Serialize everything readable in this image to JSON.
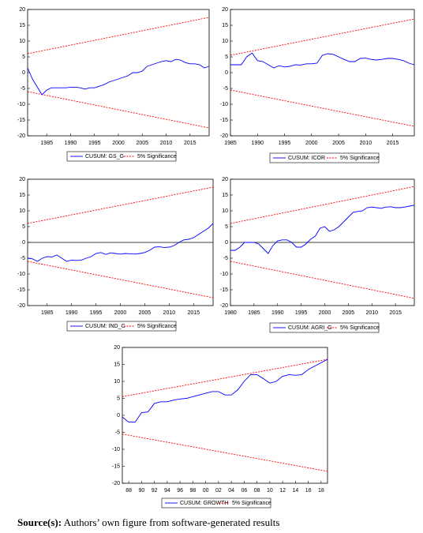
{
  "chart_data": [
    {
      "type": "line",
      "xlim": [
        1981,
        2019
      ],
      "xticks": [
        1985,
        1990,
        1995,
        2000,
        2005,
        2010,
        2015
      ],
      "ylim": [
        -20,
        20
      ],
      "yticks": [
        20,
        15,
        10,
        5,
        0,
        -5,
        -10,
        -15,
        -20
      ],
      "zero_line": false,
      "x": [
        1981,
        1982,
        1983,
        1984,
        1985,
        1986,
        1987,
        1988,
        1989,
        1990,
        1991,
        1992,
        1993,
        1994,
        1995,
        1996,
        1997,
        1998,
        1999,
        2000,
        2001,
        2002,
        2003,
        2004,
        2005,
        2006,
        2007,
        2008,
        2009,
        2010,
        2011,
        2012,
        2013,
        2014,
        2015,
        2016,
        2017,
        2018,
        2019
      ],
      "series": [
        {
          "name": "CUSUM: GS_G",
          "color": "#0000ff",
          "values": [
            1.5,
            -2,
            -4.5,
            -7,
            -5.5,
            -4.8,
            -4.8,
            -4.8,
            -4.8,
            -4.6,
            -4.6,
            -4.8,
            -5.2,
            -4.8,
            -4.8,
            -4.3,
            -3.8,
            -3,
            -2.5,
            -2,
            -1.5,
            -1,
            0,
            0,
            0.5,
            2,
            2.5,
            3,
            3.5,
            3.8,
            3.5,
            4.2,
            4,
            3.2,
            2.8,
            2.8,
            2.5,
            1.5,
            2
          ]
        }
      ],
      "bands": {
        "name": "5% Significance",
        "color": "#ff0000",
        "x": [
          1981,
          2019
        ],
        "upper": [
          6,
          17.5
        ],
        "lower": [
          -6,
          -17.5
        ]
      }
    },
    {
      "type": "line",
      "xlim": [
        1985,
        2019
      ],
      "xticks": [
        1985,
        1990,
        1995,
        2000,
        2005,
        2010,
        2015
      ],
      "ylim": [
        -20,
        20
      ],
      "yticks": [
        20,
        15,
        10,
        5,
        0,
        -5,
        -10,
        -15,
        -20
      ],
      "zero_line": false,
      "x": [
        1985,
        1986,
        1987,
        1988,
        1989,
        1990,
        1991,
        1992,
        1993,
        1994,
        1995,
        1996,
        1997,
        1998,
        1999,
        2000,
        2001,
        2002,
        2003,
        2004,
        2005,
        2006,
        2007,
        2008,
        2009,
        2010,
        2011,
        2012,
        2013,
        2014,
        2015,
        2016,
        2017,
        2018,
        2019
      ],
      "series": [
        {
          "name": "CUSUM: ICOR",
          "color": "#0000ff",
          "values": [
            2.5,
            2.5,
            2.5,
            5,
            6.2,
            3.8,
            3.5,
            2.5,
            1.5,
            2.2,
            1.8,
            2,
            2.5,
            2.4,
            2.8,
            2.8,
            3,
            5.5,
            6,
            5.8,
            5,
            4.2,
            3.5,
            3.5,
            4.5,
            4.6,
            4.2,
            4,
            4.2,
            4.5,
            4.5,
            4.2,
            3.8,
            3,
            2.5
          ]
        }
      ],
      "bands": {
        "name": "5% Significance",
        "color": "#ff0000",
        "x": [
          1985,
          2019
        ],
        "upper": [
          5.5,
          17
        ],
        "lower": [
          -5.5,
          -17
        ]
      }
    },
    {
      "type": "line",
      "xlim": [
        1981,
        2019
      ],
      "xticks": [
        1985,
        1990,
        1995,
        2000,
        2005,
        2010,
        2015
      ],
      "ylim": [
        -20,
        20
      ],
      "yticks": [
        20,
        15,
        10,
        5,
        0,
        -5,
        -10,
        -15,
        -20
      ],
      "zero_line": true,
      "x": [
        1981,
        1982,
        1983,
        1984,
        1985,
        1986,
        1987,
        1988,
        1989,
        1990,
        1991,
        1992,
        1993,
        1994,
        1995,
        1996,
        1997,
        1998,
        1999,
        2000,
        2001,
        2002,
        2003,
        2004,
        2005,
        2006,
        2007,
        2008,
        2009,
        2010,
        2011,
        2012,
        2013,
        2014,
        2015,
        2016,
        2017,
        2018,
        2019
      ],
      "series": [
        {
          "name": "CUSUM: IND_G",
          "color": "#0000ff",
          "values": [
            -5,
            -5.2,
            -6,
            -5,
            -4.5,
            -4.6,
            -4,
            -5,
            -6,
            -5.6,
            -5.7,
            -5.6,
            -5,
            -4.5,
            -3.5,
            -3.2,
            -3.8,
            -3.3,
            -3.5,
            -3.7,
            -3.5,
            -3.6,
            -3.7,
            -3.5,
            -3.2,
            -2.5,
            -1.5,
            -1.4,
            -1.6,
            -1.5,
            -1,
            0,
            0.8,
            1,
            1.5,
            2.5,
            3.5,
            4.5,
            6
          ]
        }
      ],
      "bands": {
        "name": "5% Significance",
        "color": "#ff0000",
        "x": [
          1981,
          2019
        ],
        "upper": [
          6,
          17.5
        ],
        "lower": [
          -6,
          -17.5
        ]
      }
    },
    {
      "type": "line",
      "xlim": [
        1980,
        2019
      ],
      "xticks": [
        1980,
        1985,
        1990,
        1995,
        2000,
        2005,
        2010,
        2015
      ],
      "ylim": [
        -20,
        20
      ],
      "yticks": [
        20,
        15,
        10,
        5,
        0,
        -5,
        -10,
        -15,
        -20
      ],
      "zero_line": true,
      "x": [
        1980,
        1981,
        1982,
        1983,
        1984,
        1985,
        1986,
        1987,
        1988,
        1989,
        1990,
        1991,
        1992,
        1993,
        1994,
        1995,
        1996,
        1997,
        1998,
        1999,
        2000,
        2001,
        2002,
        2003,
        2004,
        2005,
        2006,
        2007,
        2008,
        2009,
        2010,
        2011,
        2012,
        2013,
        2014,
        2015,
        2016,
        2017,
        2018,
        2019
      ],
      "series": [
        {
          "name": "CUSUM: AGRI_G",
          "color": "#0000ff",
          "values": [
            -2.5,
            -2.5,
            -1.5,
            0,
            0,
            0,
            -0.5,
            -2,
            -3.5,
            -1,
            0.5,
            0.8,
            0.8,
            0,
            -1.5,
            -1.5,
            -0.5,
            1,
            2,
            4.5,
            5,
            3.5,
            4,
            5,
            6.5,
            8,
            9.5,
            9.8,
            10,
            11,
            11.2,
            11,
            10.8,
            11.2,
            11.3,
            11,
            11,
            11.2,
            11.5,
            11.8
          ]
        }
      ],
      "bands": {
        "name": "5% Significance",
        "color": "#ff0000",
        "x": [
          1980,
          2019
        ],
        "upper": [
          6,
          17.7
        ],
        "lower": [
          -6,
          -17.7
        ]
      }
    },
    {
      "type": "line",
      "xlim": [
        1987,
        2019
      ],
      "xticks": [
        {
          "value": 1988,
          "label": "88"
        },
        {
          "value": 1990,
          "label": "90"
        },
        {
          "value": 1992,
          "label": "92"
        },
        {
          "value": 1994,
          "label": "94"
        },
        {
          "value": 1996,
          "label": "96"
        },
        {
          "value": 1998,
          "label": "98"
        },
        {
          "value": 2000,
          "label": "00"
        },
        {
          "value": 2002,
          "label": "02"
        },
        {
          "value": 2004,
          "label": "04"
        },
        {
          "value": 2006,
          "label": "06"
        },
        {
          "value": 2008,
          "label": "08"
        },
        {
          "value": 2010,
          "label": "10"
        },
        {
          "value": 2012,
          "label": "12"
        },
        {
          "value": 2014,
          "label": "14"
        },
        {
          "value": 2016,
          "label": "16"
        },
        {
          "value": 2018,
          "label": "18"
        }
      ],
      "ylim": [
        -20,
        20
      ],
      "yticks": [
        20,
        15,
        10,
        5,
        0,
        -5,
        -10,
        -15,
        -20
      ],
      "zero_line": false,
      "x": [
        1987,
        1988,
        1989,
        1990,
        1991,
        1992,
        1993,
        1994,
        1995,
        1996,
        1997,
        1998,
        1999,
        2000,
        2001,
        2002,
        2003,
        2004,
        2005,
        2006,
        2007,
        2008,
        2009,
        2010,
        2011,
        2012,
        2013,
        2014,
        2015,
        2016,
        2017,
        2018,
        2019
      ],
      "series": [
        {
          "name": "CUSUM: GROWTH",
          "color": "#0000ff",
          "values": [
            -0.5,
            -2,
            -2,
            0.8,
            1,
            3.5,
            4,
            4,
            4.5,
            4.8,
            5,
            5.5,
            6,
            6.5,
            7,
            7,
            6,
            6,
            7.5,
            10,
            12,
            12,
            10.8,
            9.5,
            10,
            11.5,
            12,
            11.8,
            12,
            13.5,
            14.5,
            15.5,
            16.5
          ]
        }
      ],
      "bands": {
        "name": "5% Significance",
        "color": "#ff0000",
        "x": [
          1987,
          2019
        ],
        "upper": [
          5.5,
          16.5
        ],
        "lower": [
          -5.5,
          -16.5
        ]
      }
    }
  ],
  "caption": {
    "label": "Source(s):",
    "text": "Authors’ own figure from software-generated results"
  }
}
